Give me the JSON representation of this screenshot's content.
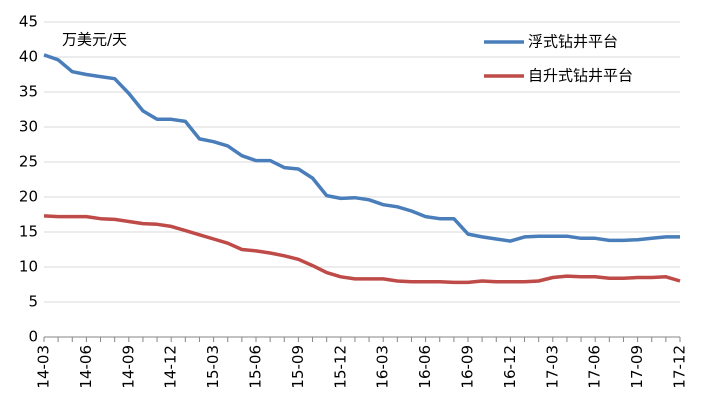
{
  "chart_data": {
    "type": "line",
    "y_label": "万美元/天",
    "categories": [
      "14-03",
      null,
      null,
      "14-06",
      null,
      null,
      "14-09",
      null,
      null,
      "14-12",
      null,
      null,
      "15-03",
      null,
      null,
      "15-06",
      null,
      null,
      "15-09",
      null,
      null,
      "15-12",
      null,
      null,
      "16-03",
      null,
      null,
      "16-06",
      null,
      null,
      "16-09",
      null,
      null,
      "16-12",
      null,
      null,
      "17-03",
      null,
      null,
      "17-06",
      null,
      null,
      "17-09",
      null,
      null,
      "17-12"
    ],
    "series": [
      {
        "name": "浮式钻井平台",
        "color": "#4a7ebb",
        "values": [
          40.3,
          39.6,
          37.9,
          37.5,
          37.2,
          36.9,
          34.8,
          32.3,
          31.1,
          31.1,
          30.8,
          28.3,
          27.9,
          27.3,
          25.9,
          25.2,
          25.2,
          24.2,
          24.0,
          22.7,
          20.2,
          19.8,
          19.9,
          19.6,
          18.9,
          18.6,
          18.0,
          17.2,
          16.9,
          16.9,
          14.7,
          14.3,
          14.0,
          13.7,
          14.3,
          14.4,
          14.4,
          14.4,
          14.1,
          14.1,
          13.8,
          13.8,
          13.9,
          14.1,
          14.3,
          14.3
        ]
      },
      {
        "name": "自升式钻井平台",
        "color": "#be4b48",
        "values": [
          17.3,
          17.2,
          17.2,
          17.2,
          16.9,
          16.8,
          16.5,
          16.2,
          16.1,
          15.8,
          15.2,
          14.6,
          14.0,
          13.4,
          12.5,
          12.3,
          12.0,
          11.6,
          11.1,
          10.2,
          9.2,
          8.6,
          8.3,
          8.3,
          8.3,
          8.0,
          7.9,
          7.9,
          7.9,
          7.8,
          7.8,
          8.0,
          7.9,
          7.9,
          7.9,
          8.0,
          8.5,
          8.7,
          8.6,
          8.6,
          8.4,
          8.4,
          8.5,
          8.5,
          8.6,
          8.0
        ]
      }
    ],
    "ylim": [
      0,
      45
    ],
    "yticks": [
      0,
      5,
      10,
      15,
      20,
      25,
      30,
      35,
      40,
      45
    ],
    "grid": true,
    "legend": "top-right"
  }
}
